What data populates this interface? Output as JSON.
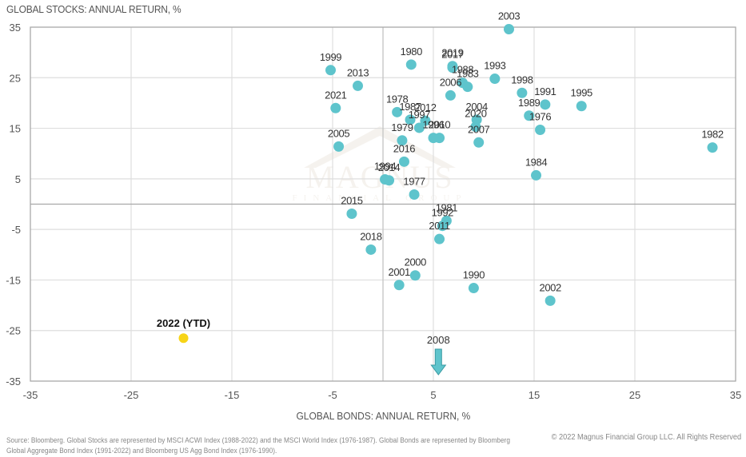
{
  "chart_data": {
    "type": "scatter",
    "title": "",
    "ylabel": "GLOBAL STOCKS: ANNUAL RETURN, %",
    "xlabel": "GLOBAL BONDS: ANNUAL RETURN, %",
    "xlim": [
      -35,
      35
    ],
    "ylim": [
      -35,
      35
    ],
    "xticks": [
      -35,
      -25,
      -15,
      -5,
      5,
      15,
      25,
      35
    ],
    "yticks": [
      35,
      25,
      15,
      5,
      -5,
      -15,
      -25,
      -35
    ],
    "grid": true,
    "zero_lines": true,
    "point_color": "#5ec4cc",
    "highlight_color": "#f7d417",
    "points": [
      {
        "label": "1976",
        "x": 15.6,
        "y": 14.7
      },
      {
        "label": "1977",
        "x": 3.1,
        "y": 1.9
      },
      {
        "label": "1978",
        "x": 1.4,
        "y": 18.2
      },
      {
        "label": "1979",
        "x": 1.9,
        "y": 12.6
      },
      {
        "label": "1980",
        "x": 2.8,
        "y": 27.6
      },
      {
        "label": "1981",
        "x": 6.3,
        "y": -3.3
      },
      {
        "label": "1982",
        "x": 32.7,
        "y": 11.2
      },
      {
        "label": "1983",
        "x": 8.4,
        "y": 23.2
      },
      {
        "label": "1984",
        "x": 15.2,
        "y": 5.7
      },
      {
        "label": "1987",
        "x": 2.7,
        "y": 16.7
      },
      {
        "label": "1988",
        "x": 7.9,
        "y": 24.0
      },
      {
        "label": "1989",
        "x": 14.5,
        "y": 17.5
      },
      {
        "label": "1990",
        "x": 9.0,
        "y": -16.6
      },
      {
        "label": "1991",
        "x": 16.1,
        "y": 19.7
      },
      {
        "label": "1992",
        "x": 5.9,
        "y": -4.3
      },
      {
        "label": "1993",
        "x": 11.1,
        "y": 24.8
      },
      {
        "label": "1994",
        "x": 0.2,
        "y": 4.9
      },
      {
        "label": "1995",
        "x": 19.7,
        "y": 19.4
      },
      {
        "label": "1996",
        "x": 5.0,
        "y": 13.1
      },
      {
        "label": "1997",
        "x": 3.6,
        "y": 15.1
      },
      {
        "label": "1998",
        "x": 13.8,
        "y": 22.0
      },
      {
        "label": "1999",
        "x": -5.2,
        "y": 26.5
      },
      {
        "label": "2000",
        "x": 3.2,
        "y": -14.1
      },
      {
        "label": "2001",
        "x": 1.6,
        "y": -16.0
      },
      {
        "label": "2002",
        "x": 16.6,
        "y": -19.1
      },
      {
        "label": "2003",
        "x": 12.5,
        "y": 34.6
      },
      {
        "label": "2004",
        "x": 9.3,
        "y": 16.7
      },
      {
        "label": "2005",
        "x": -4.4,
        "y": 11.4
      },
      {
        "label": "2006",
        "x": 6.7,
        "y": 21.5
      },
      {
        "label": "2007",
        "x": 9.5,
        "y": 12.2
      },
      {
        "label": "2010",
        "x": 5.6,
        "y": 13.1
      },
      {
        "label": "2011",
        "x": 5.6,
        "y": -6.9
      },
      {
        "label": "2012",
        "x": 4.2,
        "y": 16.5
      },
      {
        "label": "2013",
        "x": -2.5,
        "y": 23.4
      },
      {
        "label": "2014",
        "x": 0.6,
        "y": 4.7
      },
      {
        "label": "2015",
        "x": -3.1,
        "y": -1.9
      },
      {
        "label": "2016",
        "x": 2.1,
        "y": 8.4
      },
      {
        "label": "2017",
        "x": 6.9,
        "y": 27.0
      },
      {
        "label": "2018",
        "x": -1.2,
        "y": -9.0
      },
      {
        "label": "2019",
        "x": 6.9,
        "y": 27.3
      },
      {
        "label": "2020",
        "x": 9.2,
        "y": 15.3
      },
      {
        "label": "2021",
        "x": -4.7,
        "y": 19.0
      }
    ],
    "highlight": {
      "label": "2022 (YTD)",
      "x": -19.8,
      "y": -26.5
    },
    "offchart": {
      "label": "2008",
      "x": 5.5,
      "y": -40.7,
      "marker": "down-arrow"
    }
  },
  "watermark": {
    "title": "MAGNUS",
    "subtitle": "FINANCIAL GROUP"
  },
  "footer": {
    "source_line1": "Source: Bloomberg. Global Stocks are represented by MSCI ACWI Index (1988-2022) and the MSCI World Index (1976-1987). Global Bonds are represented by Bloomberg",
    "source_line2": "Global Aggregate Bond Index (1991-2022) and Bloomberg US Agg Bond Index (1976-1990).",
    "copyright": "© 2022 Magnus Financial Group LLC. All Rights Reserved"
  }
}
